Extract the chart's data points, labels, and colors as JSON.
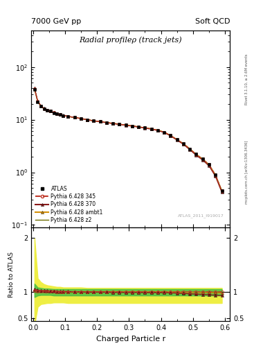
{
  "title": "Radial profileρ (track jets)",
  "header_left": "7000 GeV pp",
  "header_right": "Soft QCD",
  "xlabel": "Charged Particle r",
  "ylabel_ratio": "Ratio to ATLAS",
  "right_label_top": "Rivet 3.1.10, ≥ 2.6M events",
  "right_label_bottom": "mcplots.cern.ch [arXiv:1306.3436]",
  "watermark": "ATLAS_2011_I919017",
  "r_values": [
    0.005,
    0.015,
    0.025,
    0.035,
    0.045,
    0.055,
    0.065,
    0.075,
    0.085,
    0.095,
    0.11,
    0.13,
    0.15,
    0.17,
    0.19,
    0.21,
    0.23,
    0.25,
    0.27,
    0.29,
    0.31,
    0.33,
    0.35,
    0.37,
    0.39,
    0.41,
    0.43,
    0.45,
    0.47,
    0.49,
    0.51,
    0.53,
    0.55,
    0.57,
    0.59
  ],
  "atlas_values": [
    38,
    22,
    18,
    16,
    15,
    14.5,
    13.5,
    13,
    12.5,
    12,
    11.5,
    11,
    10.5,
    10,
    9.5,
    9.2,
    8.8,
    8.5,
    8.2,
    7.9,
    7.6,
    7.3,
    7.0,
    6.7,
    6.3,
    5.8,
    5.0,
    4.2,
    3.5,
    2.8,
    2.2,
    1.8,
    1.4,
    0.9,
    0.45
  ],
  "pythia_345_ratio": [
    1.02,
    1.01,
    1.01,
    1.01,
    1.005,
    1.005,
    1.005,
    1.0,
    1.0,
    1.0,
    1.0,
    1.0,
    1.0,
    1.0,
    1.0,
    1.0,
    1.0,
    1.0,
    1.0,
    1.0,
    1.0,
    1.0,
    1.0,
    1.0,
    1.0,
    1.0,
    1.0,
    1.0,
    1.0,
    1.0,
    1.0,
    1.0,
    1.0,
    1.0,
    1.0
  ],
  "pythia_370_ratio": [
    1.05,
    1.03,
    1.02,
    1.02,
    1.02,
    1.01,
    1.01,
    1.01,
    1.005,
    1.005,
    1.005,
    1.0,
    1.0,
    0.995,
    0.995,
    0.995,
    0.995,
    0.99,
    0.99,
    0.99,
    0.99,
    0.99,
    0.985,
    0.985,
    0.985,
    0.985,
    0.98,
    0.975,
    0.97,
    0.96,
    0.955,
    0.95,
    0.945,
    0.935,
    0.93
  ],
  "pythia_ambt1_ratio": [
    1.04,
    1.02,
    1.02,
    1.02,
    1.01,
    1.01,
    1.01,
    1.0,
    1.0,
    1.0,
    1.0,
    1.0,
    1.0,
    1.0,
    1.0,
    1.0,
    1.0,
    1.0,
    1.0,
    1.0,
    1.0,
    1.0,
    1.0,
    1.0,
    1.0,
    1.0,
    0.995,
    0.995,
    0.99,
    0.99,
    0.99,
    0.985,
    0.985,
    0.98,
    0.975
  ],
  "pythia_z2_ratio": [
    1.0,
    1.0,
    1.0,
    1.0,
    1.0,
    1.0,
    1.0,
    1.0,
    1.0,
    1.0,
    1.0,
    1.0,
    1.0,
    1.0,
    1.0,
    1.0,
    1.0,
    1.0,
    1.0,
    1.0,
    1.0,
    1.0,
    1.0,
    1.0,
    1.0,
    1.0,
    1.0,
    1.0,
    1.0,
    1.0,
    1.0,
    1.0,
    1.0,
    1.0,
    1.0
  ],
  "yellow_band_lower": [
    0.38,
    0.72,
    0.77,
    0.78,
    0.79,
    0.79,
    0.8,
    0.8,
    0.8,
    0.8,
    0.79,
    0.79,
    0.79,
    0.79,
    0.79,
    0.79,
    0.79,
    0.79,
    0.79,
    0.79,
    0.79,
    0.79,
    0.79,
    0.79,
    0.79,
    0.79,
    0.79,
    0.79,
    0.79,
    0.79,
    0.79,
    0.79,
    0.79,
    0.79,
    0.79
  ],
  "yellow_band_upper": [
    2.0,
    1.25,
    1.18,
    1.14,
    1.12,
    1.11,
    1.1,
    1.09,
    1.09,
    1.08,
    1.08,
    1.08,
    1.08,
    1.07,
    1.07,
    1.07,
    1.07,
    1.07,
    1.07,
    1.07,
    1.07,
    1.07,
    1.07,
    1.07,
    1.07,
    1.07,
    1.07,
    1.07,
    1.07,
    1.07,
    1.07,
    1.07,
    1.07,
    1.07,
    1.07
  ],
  "green_band_lower": [
    0.9,
    0.93,
    0.94,
    0.94,
    0.94,
    0.94,
    0.93,
    0.93,
    0.93,
    0.93,
    0.93,
    0.93,
    0.93,
    0.93,
    0.93,
    0.93,
    0.93,
    0.93,
    0.93,
    0.93,
    0.93,
    0.93,
    0.93,
    0.93,
    0.93,
    0.93,
    0.93,
    0.93,
    0.93,
    0.93,
    0.93,
    0.93,
    0.93,
    0.93,
    0.93
  ],
  "green_band_upper": [
    1.15,
    1.08,
    1.07,
    1.06,
    1.06,
    1.055,
    1.05,
    1.05,
    1.05,
    1.05,
    1.05,
    1.05,
    1.05,
    1.05,
    1.05,
    1.05,
    1.05,
    1.05,
    1.05,
    1.05,
    1.05,
    1.05,
    1.05,
    1.05,
    1.05,
    1.05,
    1.05,
    1.05,
    1.05,
    1.05,
    1.05,
    1.05,
    1.05,
    1.05,
    1.05
  ],
  "color_345": "#c0392b",
  "color_370": "#8b1a1a",
  "color_ambt1": "#d4900a",
  "color_z2": "#6b6b00",
  "color_atlas": "black",
  "color_yellow": "#eeee44",
  "color_green": "#44bb44",
  "ylim_main": [
    0.09,
    500
  ],
  "ylim_ratio": [
    0.45,
    2.2
  ],
  "xlim": [
    -0.005,
    0.615
  ]
}
